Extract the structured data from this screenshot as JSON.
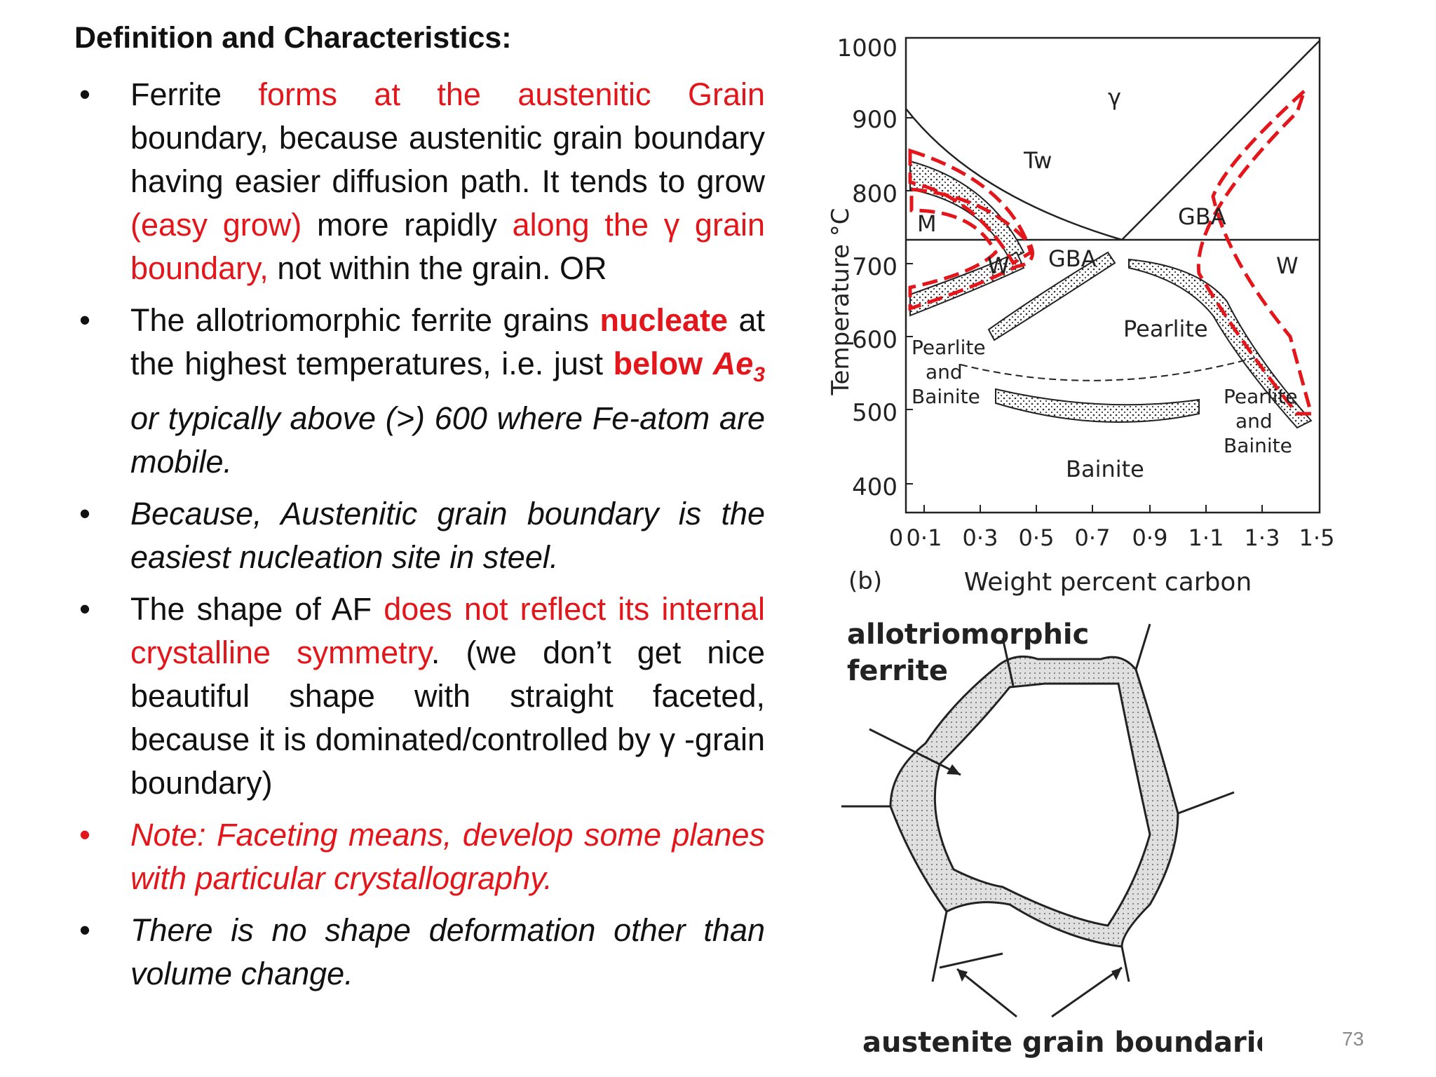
{
  "heading": "Definition and Characteristics:",
  "bullets": {
    "b1": {
      "t1": "Ferrite ",
      "t2": "forms at the austenitic Grain",
      "t3": " boundary, because austenitic grain boundary having easier diffusion path.  It tends to grow ",
      "t4": "(easy grow)",
      "t5": " more rapidly ",
      "t6": "along the γ grain boundary,",
      "t7": " not within the grain.     OR"
    },
    "b2": {
      "t1": "The allotriomorphic ferrite grains ",
      "t2": "nucleate",
      "t3": " at the highest temperatures, i.e. just ",
      "t4": "below ",
      "t5": "Ae",
      "t5sub": "3",
      "t6": " or typically above (>) 600 where Fe-atom are mobile."
    },
    "b3": {
      "t1": "Because, Austenitic grain boundary is the easiest nucleation site in steel."
    },
    "b4": {
      "t1": "The shape of AF ",
      "t2": "does not reflect its internal crystalline symmetry",
      "t3": ". (we don’t get nice beautiful shape with straight faceted, because it is dominated/controlled by γ -grain boundary)"
    },
    "b5": {
      "t1": "Note: Faceting means, develop some planes with particular crystallography."
    },
    "b6": {
      "t1": "There is no shape deformation other than volume change."
    }
  },
  "bullet_symbol": "•",
  "diagram_top": {
    "y_axis_label": "Temperature °C",
    "x_axis_label": "Weight percent carbon",
    "panel_label": "(b)",
    "y_ticks": [
      "1000",
      "900",
      "800",
      "700",
      "600",
      "500",
      "400"
    ],
    "x_ticks": [
      "0",
      "0·1",
      "0·3",
      "0·5",
      "0·7",
      "0·9",
      "1·1",
      "1·3",
      "1·5"
    ],
    "regions": {
      "gamma": "γ",
      "tw": "Tw",
      "gba_left": "GBA",
      "gba_right": "GBA",
      "m": "M",
      "w_left": "W",
      "w_right": "W",
      "pearlite": "Pearlite",
      "pearlite_bainite_left": [
        "Pearlite",
        "and",
        "Bainite"
      ],
      "pearlite_bainite_right": [
        "Pearlite",
        "and",
        "Bainite"
      ],
      "bainite": "Bainite"
    },
    "highlight_color": "#e3161b"
  },
  "diagram_bottom": {
    "label_top": [
      "allotriomorphic",
      "ferrite"
    ],
    "label_bottom": "austenite grain boundaries"
  },
  "slide_number": "73"
}
